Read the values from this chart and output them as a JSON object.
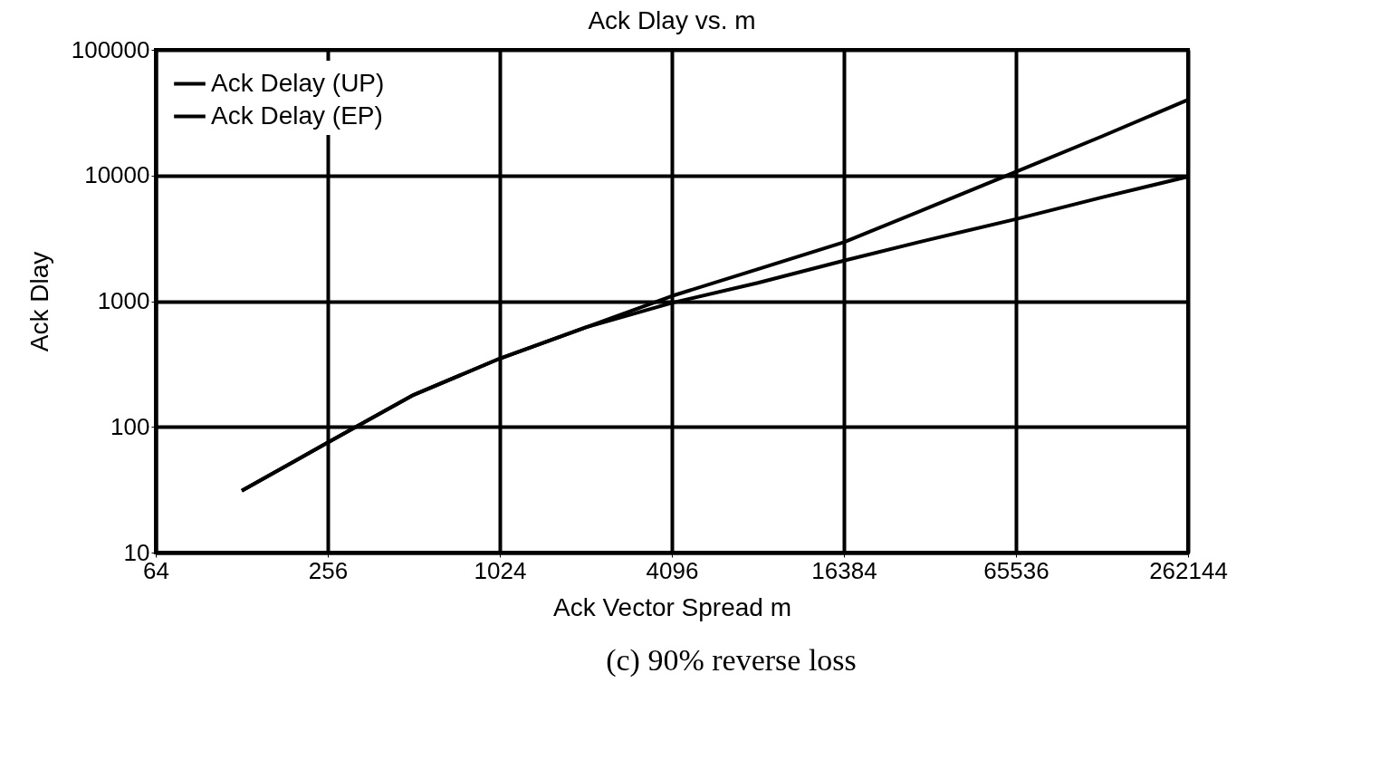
{
  "chart_data": {
    "type": "line",
    "title": "Ack Dlay vs. m",
    "xlabel": "Ack Vector Spread m",
    "ylabel": "Ack Dlay",
    "annotations": [
      "(c) 90% reverse loss"
    ],
    "x": [
      128,
      256,
      512,
      1024,
      2048,
      4096,
      8192,
      16384,
      32768,
      65536,
      131072,
      262144
    ],
    "series": [
      {
        "name": "Ack Delay (UP)",
        "color": "#000000",
        "values": [
          31,
          75,
          180,
          350,
          620,
          1100,
          1800,
          2950,
          5600,
          10700,
          20500,
          40000
        ]
      },
      {
        "name": "Ack Delay (EP)",
        "color": "#000000",
        "values": [
          31,
          75,
          180,
          350,
          620,
          970,
          1400,
          2100,
          3100,
          4500,
          6700,
          9800
        ]
      }
    ],
    "log": "xy",
    "xlim": [
      64,
      262144
    ],
    "xticks": [
      64,
      256,
      1024,
      4096,
      16384,
      65536,
      262144
    ],
    "ylim": [
      10,
      100000
    ],
    "yticks": [
      10,
      100,
      1000,
      10000,
      100000
    ],
    "grid": true,
    "legend": "top left",
    "line_style": "solid",
    "marker": "none"
  }
}
